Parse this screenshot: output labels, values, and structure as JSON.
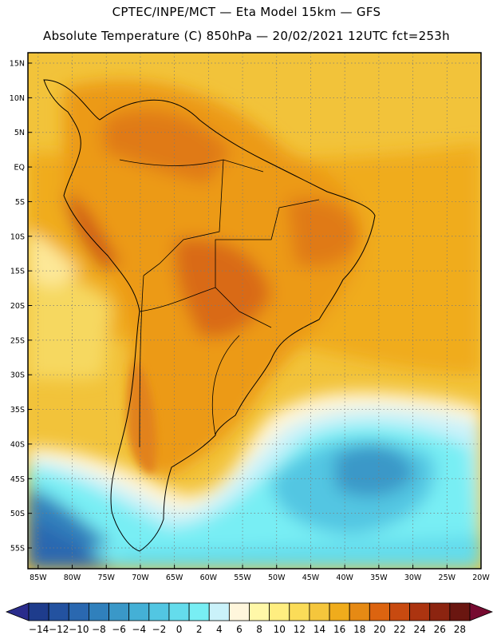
{
  "title": {
    "line1": "CPTEC/INPE/MCT —  Eta Model 15km — GFS",
    "line2": "Absolute Temperature (C) 850hPa — 20/02/2021 12UTC fct=253h"
  },
  "map": {
    "lat_labels": [
      "15N",
      "10N",
      "5N",
      "EQ",
      "5S",
      "10S",
      "15S",
      "20S",
      "25S",
      "30S",
      "35S",
      "40S",
      "45S",
      "50S",
      "55S"
    ],
    "lat_values": [
      15,
      10,
      5,
      0,
      -5,
      -10,
      -15,
      -20,
      -25,
      -30,
      -35,
      -40,
      -45,
      -50,
      -55
    ],
    "lon_labels": [
      "85W",
      "80W",
      "75W",
      "70W",
      "65W",
      "60W",
      "55W",
      "50W",
      "45W",
      "40W",
      "35W",
      "30W",
      "25W",
      "20W"
    ],
    "lon_values": [
      -85,
      -80,
      -75,
      -70,
      -65,
      -60,
      -55,
      -50,
      -45,
      -40,
      -35,
      -30,
      -25,
      -20
    ],
    "lat_range": [
      -58,
      16.5
    ],
    "lon_range": [
      -86.5,
      -20
    ]
  },
  "colorbar": {
    "labels": [
      "-14",
      "-12",
      "-10",
      "-8",
      "-6",
      "-4",
      "-2",
      "0",
      "2",
      "4",
      "6",
      "8",
      "10",
      "12",
      "14",
      "16",
      "18",
      "20",
      "22",
      "24",
      "26",
      "28"
    ],
    "colors": [
      "#1e3c8c",
      "#2352a0",
      "#2a68b0",
      "#3080bc",
      "#3a98c8",
      "#44b0d6",
      "#52c6e2",
      "#64dcec",
      "#78eef4",
      "#caf2fa",
      "#fff6dc",
      "#fff8a8",
      "#ffee80",
      "#fbdc58",
      "#f5c63c",
      "#f0ac1c",
      "#e68a14",
      "#dc6410",
      "#c84a10",
      "#ac3410",
      "#8c2410",
      "#6a1610"
    ],
    "under_color": "#2a2c8c",
    "over_color": "#760a30"
  }
}
